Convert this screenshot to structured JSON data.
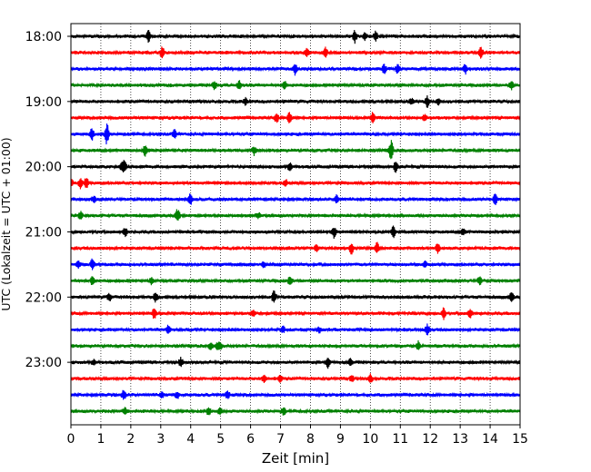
{
  "chart_data": {
    "type": "line",
    "title": "",
    "xlabel": "Zeit  [min]",
    "ylabel": "UTC (Lokalzeit = UTC + 01:00)",
    "xlim": [
      0,
      15
    ],
    "x_ticks": [
      0,
      1,
      2,
      3,
      4,
      5,
      6,
      7,
      8,
      9,
      10,
      11,
      12,
      13,
      14,
      15
    ],
    "y_tick_labels": [
      "18:00",
      "19:00",
      "20:00",
      "21:00",
      "22:00",
      "23:00"
    ],
    "trace_start_times": [
      "18:00",
      "18:15",
      "18:30",
      "18:45",
      "19:00",
      "19:15",
      "19:30",
      "19:45",
      "20:00",
      "20:15",
      "20:30",
      "20:45",
      "21:00",
      "21:15",
      "21:30",
      "21:45",
      "22:00",
      "22:15",
      "22:30",
      "22:45",
      "23:00",
      "23:15",
      "23:30",
      "23:45"
    ],
    "trace_colors": [
      "#000000",
      "#ff0000",
      "#0000ff",
      "#008000"
    ],
    "grid": "vertical dotted at each minute",
    "trace_description": "24 seismogram helicorder traces of 15 minutes each, cycling black/red/blue/green"
  }
}
